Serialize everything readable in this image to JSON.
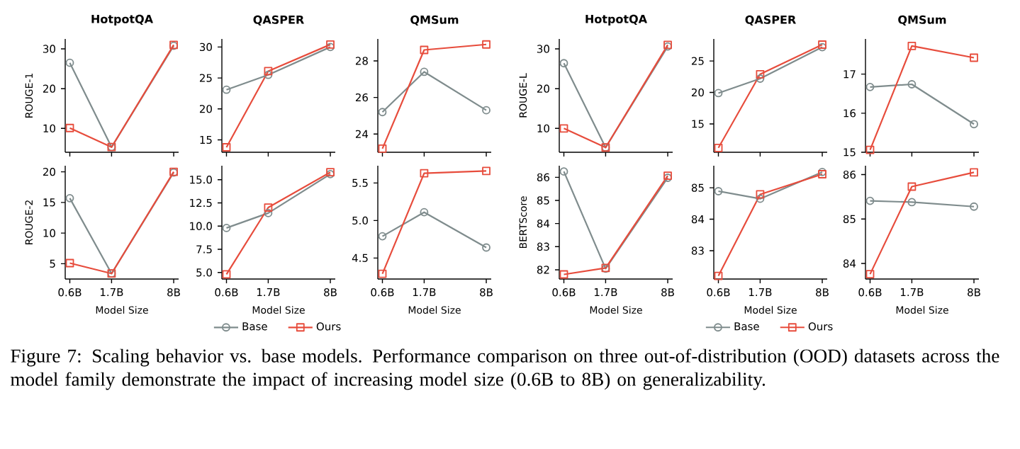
{
  "chart_data": [
    {
      "type": "line",
      "title": "HotpotQA",
      "ylabel": "ROUGE-1",
      "x": [
        0.6,
        1.7,
        8
      ],
      "xlim": [
        0.535,
        9.05
      ],
      "xticks": [
        {
          "value": 0.6,
          "label": null
        },
        {
          "value": 1.7,
          "label": null
        },
        {
          "value": 8,
          "label": null
        }
      ],
      "log": "x",
      "tick_labels": "y",
      "ylim": [
        4,
        32.5
      ],
      "yticks": [
        10,
        20,
        30
      ],
      "annotations": [
        "Figure 7: Scaling behavior vs. base models. Performance comparison on three out-of-distribution (OOD) datasets across the model family demonstrate the impact of increasing model size (0.6B to 8B) on generalizability."
      ],
      "series": [
        {
          "color": "#7f8c8d",
          "marker": "circle",
          "values": [
            26.5,
            5.3,
            30.8
          ]
        },
        {
          "color": "#e74c3c",
          "marker": "square",
          "values": [
            10.1,
            5.3,
            31.0
          ]
        }
      ]
    },
    {
      "type": "line",
      "title": "QASPER",
      "x": [
        0.6,
        1.7,
        8
      ],
      "xlim": [
        0.535,
        9.05
      ],
      "xticks": [
        {
          "value": 0.6,
          "label": null
        },
        {
          "value": 1.7,
          "label": null
        },
        {
          "value": 8,
          "label": null
        }
      ],
      "log": "x",
      "tick_labels": "y",
      "ylim": [
        13,
        31.3
      ],
      "yticks": [
        15,
        20,
        25,
        30
      ],
      "series": [
        {
          "color": "#7f8c8d",
          "marker": "circle",
          "values": [
            23.1,
            25.5,
            30.0
          ]
        },
        {
          "color": "#e74c3c",
          "marker": "square",
          "values": [
            13.8,
            26.1,
            30.4
          ]
        }
      ]
    },
    {
      "type": "line",
      "title": "QMSum",
      "x": [
        0.6,
        1.7,
        8
      ],
      "xlim": [
        0.535,
        9.05
      ],
      "xticks": [
        {
          "value": 0.6,
          "label": null
        },
        {
          "value": 1.7,
          "label": null
        },
        {
          "value": 8,
          "label": null
        }
      ],
      "log": "x",
      "tick_labels": "y",
      "ylim": [
        23,
        29.2
      ],
      "yticks": [
        24,
        26,
        28
      ],
      "series": [
        {
          "color": "#7f8c8d",
          "marker": "circle",
          "values": [
            25.2,
            27.4,
            25.3
          ]
        },
        {
          "color": "#e74c3c",
          "marker": "square",
          "values": [
            23.2,
            28.6,
            28.9
          ]
        }
      ]
    },
    {
      "type": "line",
      "title": "HotpotQA",
      "ylabel": "ROUGE-L",
      "x": [
        0.6,
        1.7,
        8
      ],
      "xlim": [
        0.535,
        9.05
      ],
      "xticks": [
        {
          "value": 0.6,
          "label": null
        },
        {
          "value": 1.7,
          "label": null
        },
        {
          "value": 8,
          "label": null
        }
      ],
      "log": "x",
      "tick_labels": "y",
      "ylim": [
        4,
        32.5
      ],
      "yticks": [
        10,
        20,
        30
      ],
      "series": [
        {
          "color": "#7f8c8d",
          "marker": "circle",
          "values": [
            26.4,
            5.2,
            30.6
          ]
        },
        {
          "color": "#e74c3c",
          "marker": "square",
          "values": [
            10.0,
            5.2,
            31.0
          ]
        }
      ]
    },
    {
      "type": "line",
      "title": "QASPER",
      "x": [
        0.6,
        1.7,
        8
      ],
      "xlim": [
        0.535,
        9.05
      ],
      "xticks": [
        {
          "value": 0.6,
          "label": null
        },
        {
          "value": 1.7,
          "label": null
        },
        {
          "value": 8,
          "label": null
        }
      ],
      "log": "x",
      "tick_labels": "y",
      "ylim": [
        10.5,
        28.5
      ],
      "yticks": [
        15,
        20,
        25
      ],
      "series": [
        {
          "color": "#7f8c8d",
          "marker": "circle",
          "values": [
            19.9,
            22.2,
            27.2
          ]
        },
        {
          "color": "#e74c3c",
          "marker": "square",
          "values": [
            11.2,
            22.9,
            27.6
          ]
        }
      ]
    },
    {
      "type": "line",
      "title": "QMSum",
      "x": [
        0.6,
        1.7,
        8
      ],
      "xlim": [
        0.535,
        9.05
      ],
      "xticks": [
        {
          "value": 0.6,
          "label": null
        },
        {
          "value": 1.7,
          "label": null
        },
        {
          "value": 8,
          "label": null
        }
      ],
      "log": "x",
      "tick_labels": "y",
      "ylim": [
        15,
        17.9
      ],
      "yticks": [
        15,
        16,
        17
      ],
      "series": [
        {
          "color": "#7f8c8d",
          "marker": "circle",
          "values": [
            16.67,
            16.74,
            15.72
          ]
        },
        {
          "color": "#e74c3c",
          "marker": "square",
          "values": [
            15.06,
            17.72,
            17.42
          ]
        }
      ]
    },
    {
      "type": "line",
      "ylabel": "ROUGE-2",
      "xlabel": "Model Size",
      "x": [
        0.6,
        1.7,
        8
      ],
      "xlim": [
        0.535,
        9.05
      ],
      "xticks": [
        {
          "value": 0.6,
          "label": "0.6B"
        },
        {
          "value": 1.7,
          "label": "1.7B"
        },
        {
          "value": 8,
          "label": "8B"
        }
      ],
      "log": "x",
      "ylim": [
        2.5,
        21
      ],
      "yticks": [
        5,
        10,
        15,
        20
      ],
      "series": [
        {
          "color": "#7f8c8d",
          "marker": "circle",
          "values": [
            15.7,
            3.4,
            19.9
          ]
        },
        {
          "color": "#e74c3c",
          "marker": "square",
          "values": [
            5.1,
            3.4,
            20.0
          ]
        }
      ]
    },
    {
      "type": "line",
      "xlabel": "Model Size",
      "x": [
        0.6,
        1.7,
        8
      ],
      "xlim": [
        0.535,
        9.05
      ],
      "xticks": [
        {
          "value": 0.6,
          "label": "0.6B"
        },
        {
          "value": 1.7,
          "label": "1.7B"
        },
        {
          "value": 8,
          "label": "8B"
        }
      ],
      "log": "x",
      "ylim": [
        4.3,
        16.5
      ],
      "yticks": [
        {
          "value": 5,
          "label": "5.0"
        },
        {
          "value": 7.5,
          "label": "7.5"
        },
        {
          "value": 10,
          "label": "10.0"
        },
        {
          "value": 12.5,
          "label": "12.5"
        },
        {
          "value": 15,
          "label": "15.0"
        }
      ],
      "legend": "bottom",
      "series": [
        {
          "name": "Base",
          "color": "#7f8c8d",
          "marker": "circle",
          "values": [
            9.8,
            11.4,
            15.6
          ]
        },
        {
          "name": "Ours",
          "color": "#e74c3c",
          "marker": "square",
          "values": [
            4.8,
            12.0,
            15.8
          ]
        }
      ]
    },
    {
      "type": "line",
      "xlabel": "Model Size",
      "x": [
        0.6,
        1.7,
        8
      ],
      "xlim": [
        0.535,
        9.05
      ],
      "xticks": [
        {
          "value": 0.6,
          "label": "0.6B"
        },
        {
          "value": 1.7,
          "label": "1.7B"
        },
        {
          "value": 8,
          "label": "8B"
        }
      ],
      "log": "x",
      "ylim": [
        4.22,
        5.73
      ],
      "yticks": [
        4.5,
        {
          "value": 5,
          "label": "5.0"
        },
        5.5
      ],
      "series": [
        {
          "color": "#7f8c8d",
          "marker": "circle",
          "values": [
            4.79,
            5.11,
            4.64
          ]
        },
        {
          "color": "#e74c3c",
          "marker": "square",
          "values": [
            4.29,
            5.63,
            5.66
          ]
        }
      ]
    },
    {
      "type": "line",
      "ylabel": "BERTScore",
      "xlabel": "Model Size",
      "x": [
        0.6,
        1.7,
        8
      ],
      "xlim": [
        0.535,
        9.05
      ],
      "xticks": [
        {
          "value": 0.6,
          "label": "0.6B"
        },
        {
          "value": 1.7,
          "label": "1.7B"
        },
        {
          "value": 8,
          "label": "8B"
        }
      ],
      "log": "x",
      "ylim": [
        81.6,
        86.5
      ],
      "yticks": [
        82,
        83,
        84,
        85,
        86
      ],
      "series": [
        {
          "color": "#7f8c8d",
          "marker": "circle",
          "values": [
            86.25,
            82.05,
            85.98
          ]
        },
        {
          "color": "#e74c3c",
          "marker": "square",
          "values": [
            81.8,
            82.08,
            86.07
          ]
        }
      ]
    },
    {
      "type": "line",
      "xlabel": "Model Size",
      "x": [
        0.6,
        1.7,
        8
      ],
      "xlim": [
        0.535,
        9.05
      ],
      "xticks": [
        {
          "value": 0.6,
          "label": "0.6B"
        },
        {
          "value": 1.7,
          "label": "1.7B"
        },
        {
          "value": 8,
          "label": "8B"
        }
      ],
      "log": "x",
      "ylim": [
        82.1,
        85.7
      ],
      "yticks": [
        83,
        84,
        85
      ],
      "legend": "bottom",
      "series": [
        {
          "name": "Base",
          "color": "#7f8c8d",
          "marker": "circle",
          "values": [
            84.89,
            84.65,
            85.5
          ]
        },
        {
          "name": "Ours",
          "color": "#e74c3c",
          "marker": "square",
          "values": [
            82.2,
            84.79,
            85.43
          ]
        }
      ]
    },
    {
      "type": "line",
      "xlabel": "Model Size",
      "x": [
        0.6,
        1.7,
        8
      ],
      "xlim": [
        0.535,
        9.05
      ],
      "xticks": [
        {
          "value": 0.6,
          "label": "0.6B"
        },
        {
          "value": 1.7,
          "label": "1.7B"
        },
        {
          "value": 8,
          "label": "8B"
        }
      ],
      "log": "x",
      "ylim": [
        83.65,
        86.2
      ],
      "yticks": [
        84,
        85,
        86
      ],
      "series": [
        {
          "color": "#7f8c8d",
          "marker": "circle",
          "values": [
            85.41,
            85.38,
            85.28
          ]
        },
        {
          "color": "#e74c3c",
          "marker": "square",
          "values": [
            83.76,
            85.73,
            86.05
          ]
        }
      ]
    }
  ]
}
